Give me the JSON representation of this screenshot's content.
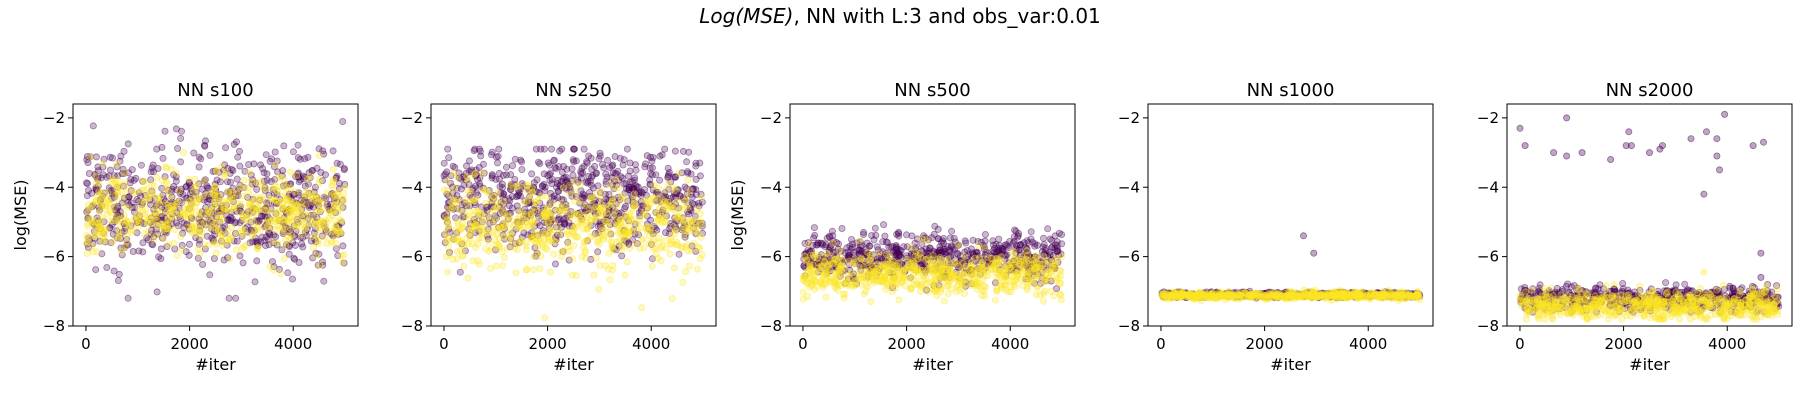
{
  "figure": {
    "title_italic": "Log(MSE)",
    "title_rest": ", NN with L:3 and obs_var:0.01"
  },
  "colors": {
    "purple": "#440154",
    "yellow": "#fde725"
  },
  "chart_data": [
    {
      "type": "scatter",
      "title": "NN s100",
      "xlabel": "#iter",
      "ylabel": "log(MSE)",
      "xlim": [
        -250,
        5250
      ],
      "ylim": [
        -8,
        -1.6
      ],
      "xticks": [
        0,
        2000,
        4000
      ],
      "yticks": [
        -2,
        -4,
        -6,
        -8
      ],
      "series": [
        {
          "color": "purple",
          "x_range": [
            0,
            5000
          ],
          "y_center": -4.6,
          "y_spread": 0.85,
          "y_min": -7.2,
          "y_max": -1.9,
          "count": 700,
          "outliers": []
        },
        {
          "color": "yellow",
          "x_range": [
            0,
            5000
          ],
          "y_center": -4.7,
          "y_spread": 0.55,
          "y_min": -7.2,
          "y_max": -3.0,
          "count": 600,
          "outliers": []
        }
      ]
    },
    {
      "type": "scatter",
      "title": "NN s250",
      "xlabel": "#iter",
      "ylabel": "",
      "xlim": [
        -250,
        5250
      ],
      "ylim": [
        -8,
        -1.6
      ],
      "xticks": [
        0,
        2000,
        4000
      ],
      "yticks": [
        -2,
        -4,
        -6,
        -8
      ],
      "series": [
        {
          "color": "purple",
          "x_range": [
            0,
            5000
          ],
          "y_center": -4.4,
          "y_spread": 0.75,
          "y_min": -7.6,
          "y_max": -2.9,
          "count": 700,
          "outliers": []
        },
        {
          "color": "yellow",
          "x_range": [
            0,
            5000
          ],
          "y_center": -5.1,
          "y_spread": 0.65,
          "y_min": -7.8,
          "y_max": -3.6,
          "count": 600,
          "outliers": []
        }
      ]
    },
    {
      "type": "scatter",
      "title": "NN s500",
      "xlabel": "#iter",
      "ylabel": "log(MSE)",
      "xlim": [
        -250,
        5250
      ],
      "ylim": [
        -8,
        -1.6
      ],
      "xticks": [
        0,
        2000,
        4000
      ],
      "yticks": [
        -2,
        -4,
        -6,
        -8
      ],
      "series": [
        {
          "color": "purple",
          "x_range": [
            0,
            5000
          ],
          "y_center": -6.0,
          "y_spread": 0.35,
          "y_min": -7.2,
          "y_max": -4.7,
          "count": 650,
          "outliers": []
        },
        {
          "color": "yellow",
          "x_range": [
            0,
            5000
          ],
          "y_center": -6.5,
          "y_spread": 0.3,
          "y_min": -7.3,
          "y_max": -5.3,
          "count": 650,
          "outliers": []
        }
      ]
    },
    {
      "type": "scatter",
      "title": "NN s1000",
      "xlabel": "#iter",
      "ylabel": "",
      "xlim": [
        -250,
        5250
      ],
      "ylim": [
        -8,
        -1.6
      ],
      "xticks": [
        0,
        2000,
        4000
      ],
      "yticks": [
        -2,
        -4,
        -6,
        -8
      ],
      "series": [
        {
          "color": "purple",
          "x_range": [
            0,
            5000
          ],
          "y_center": -7.1,
          "y_spread": 0.04,
          "y_min": -7.25,
          "y_max": -6.95,
          "count": 500,
          "outliers": [
            [
              2750,
              -5.4
            ],
            [
              2950,
              -5.9
            ]
          ]
        },
        {
          "color": "yellow",
          "x_range": [
            0,
            5000
          ],
          "y_center": -7.12,
          "y_spread": 0.05,
          "y_min": -7.35,
          "y_max": -6.95,
          "count": 650,
          "outliers": []
        }
      ]
    },
    {
      "type": "scatter",
      "title": "NN s2000",
      "xlabel": "#iter",
      "ylabel": "",
      "xlim": [
        -250,
        5250
      ],
      "ylim": [
        -8,
        -1.6
      ],
      "xticks": [
        0,
        2000,
        4000
      ],
      "yticks": [
        -2,
        -4,
        -6,
        -8
      ],
      "series": [
        {
          "color": "purple",
          "x_range": [
            0,
            5000
          ],
          "y_center": -7.2,
          "y_spread": 0.18,
          "y_min": -7.6,
          "y_max": -6.7,
          "count": 550,
          "outliers": [
            [
              0,
              -2.3
            ],
            [
              100,
              -2.8
            ],
            [
              900,
              -2.0
            ],
            [
              650,
              -3.0
            ],
            [
              900,
              -3.1
            ],
            [
              1200,
              -3.0
            ],
            [
              1750,
              -3.2
            ],
            [
              2050,
              -2.8
            ],
            [
              2100,
              -2.4
            ],
            [
              2150,
              -2.8
            ],
            [
              2500,
              -3.0
            ],
            [
              2700,
              -2.9
            ],
            [
              2750,
              -2.8
            ],
            [
              3300,
              -2.6
            ],
            [
              3600,
              -2.4
            ],
            [
              3800,
              -2.6
            ],
            [
              3800,
              -3.1
            ],
            [
              3850,
              -3.5
            ],
            [
              3950,
              -1.9
            ],
            [
              3550,
              -4.2
            ],
            [
              4500,
              -2.8
            ],
            [
              4700,
              -2.7
            ],
            [
              4650,
              -5.9
            ],
            [
              4650,
              -6.6
            ]
          ]
        },
        {
          "color": "yellow",
          "x_range": [
            0,
            5000
          ],
          "y_center": -7.4,
          "y_spread": 0.2,
          "y_min": -7.8,
          "y_max": -6.8,
          "count": 650,
          "outliers": [
            [
              3550,
              -6.45
            ]
          ]
        }
      ]
    }
  ]
}
